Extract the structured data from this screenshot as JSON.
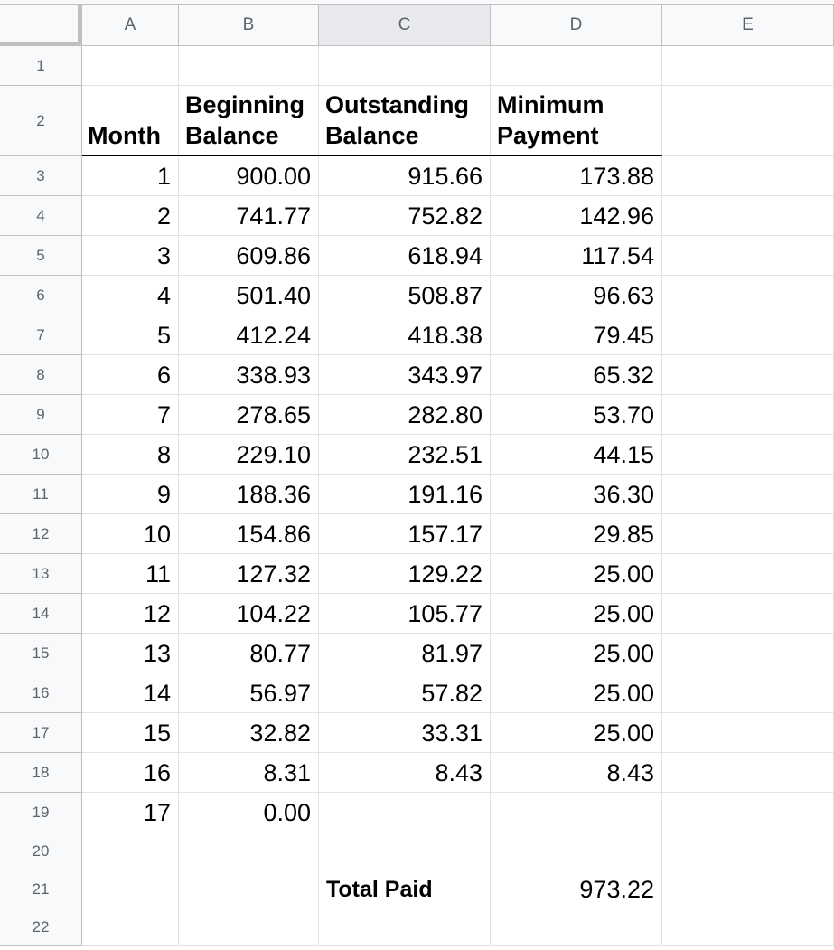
{
  "columns": [
    "A",
    "B",
    "C",
    "D",
    "E"
  ],
  "rows": [
    "1",
    "2",
    "3",
    "4",
    "5",
    "6",
    "7",
    "8",
    "9",
    "10",
    "11",
    "12",
    "13",
    "14",
    "15",
    "16",
    "17",
    "18",
    "19",
    "20",
    "21",
    "22"
  ],
  "headers": {
    "month": [
      "",
      "Month"
    ],
    "beginning_balance": [
      "Beginning",
      "Balance"
    ],
    "outstanding_balance": [
      "Outstanding",
      "Balance"
    ],
    "minimum_payment": [
      "Minimum",
      "Payment"
    ]
  },
  "table": [
    {
      "month": "1",
      "beginning": "900.00",
      "outstanding": "915.66",
      "payment": "173.88"
    },
    {
      "month": "2",
      "beginning": "741.77",
      "outstanding": "752.82",
      "payment": "142.96"
    },
    {
      "month": "3",
      "beginning": "609.86",
      "outstanding": "618.94",
      "payment": "117.54"
    },
    {
      "month": "4",
      "beginning": "501.40",
      "outstanding": "508.87",
      "payment": "96.63"
    },
    {
      "month": "5",
      "beginning": "412.24",
      "outstanding": "418.38",
      "payment": "79.45"
    },
    {
      "month": "6",
      "beginning": "338.93",
      "outstanding": "343.97",
      "payment": "65.32"
    },
    {
      "month": "7",
      "beginning": "278.65",
      "outstanding": "282.80",
      "payment": "53.70"
    },
    {
      "month": "8",
      "beginning": "229.10",
      "outstanding": "232.51",
      "payment": "44.15"
    },
    {
      "month": "9",
      "beginning": "188.36",
      "outstanding": "191.16",
      "payment": "36.30"
    },
    {
      "month": "10",
      "beginning": "154.86",
      "outstanding": "157.17",
      "payment": "29.85"
    },
    {
      "month": "11",
      "beginning": "127.32",
      "outstanding": "129.22",
      "payment": "25.00"
    },
    {
      "month": "12",
      "beginning": "104.22",
      "outstanding": "105.77",
      "payment": "25.00"
    },
    {
      "month": "13",
      "beginning": "80.77",
      "outstanding": "81.97",
      "payment": "25.00"
    },
    {
      "month": "14",
      "beginning": "56.97",
      "outstanding": "57.82",
      "payment": "25.00"
    },
    {
      "month": "15",
      "beginning": "32.82",
      "outstanding": "33.31",
      "payment": "25.00"
    },
    {
      "month": "16",
      "beginning": "8.31",
      "outstanding": "8.43",
      "payment": "8.43"
    },
    {
      "month": "17",
      "beginning": "0.00",
      "outstanding": "",
      "payment": ""
    }
  ],
  "total": {
    "label": "Total Paid",
    "value": "973.22"
  },
  "selected_column": "C"
}
